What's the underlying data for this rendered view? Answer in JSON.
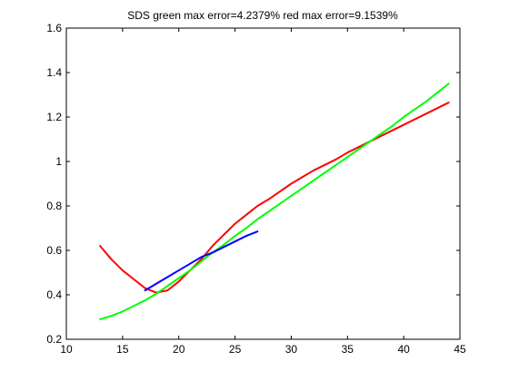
{
  "chart_data": {
    "type": "line",
    "title": "SDS green max error=4.2379% red max error=9.1539%",
    "xlabel": "",
    "ylabel": "",
    "xlim": [
      10,
      45
    ],
    "ylim": [
      0.2,
      1.6
    ],
    "x_ticks": [
      10,
      15,
      20,
      25,
      30,
      35,
      40,
      45
    ],
    "y_ticks": [
      0.2,
      0.4,
      0.6,
      0.8,
      1,
      1.2,
      1.4,
      1.6
    ],
    "x_tick_labels": [
      "10",
      "15",
      "20",
      "25",
      "30",
      "35",
      "40",
      "45"
    ],
    "y_tick_labels": [
      "0.2",
      "0.4",
      "0.6",
      "0.8",
      "1",
      "1.2",
      "1.4",
      "1.6"
    ],
    "grid": false,
    "legend": "none",
    "series": [
      {
        "color": "#ff0000",
        "x": [
          13,
          14,
          15,
          16,
          17,
          18,
          19,
          20,
          21,
          22,
          23,
          24,
          25,
          26,
          27,
          28,
          29,
          30,
          31,
          32,
          33,
          34,
          35,
          36,
          37,
          38,
          39,
          40,
          41,
          42,
          43,
          44
        ],
        "y": [
          0.62,
          0.56,
          0.51,
          0.47,
          0.43,
          0.41,
          0.42,
          0.46,
          0.51,
          0.56,
          0.62,
          0.67,
          0.72,
          0.76,
          0.8,
          0.83,
          0.865,
          0.9,
          0.93,
          0.96,
          0.985,
          1.01,
          1.04,
          1.065,
          1.09,
          1.115,
          1.14,
          1.165,
          1.19,
          1.215,
          1.24,
          1.265
        ]
      },
      {
        "color": "#00ff00",
        "x": [
          13,
          14,
          15,
          16,
          17,
          18,
          19,
          20,
          21,
          22,
          23,
          24,
          25,
          26,
          27,
          28,
          29,
          30,
          31,
          32,
          33,
          34,
          35,
          36,
          37,
          38,
          39,
          40,
          41,
          42,
          43,
          44
        ],
        "y": [
          0.29,
          0.305,
          0.325,
          0.35,
          0.375,
          0.405,
          0.44,
          0.475,
          0.51,
          0.55,
          0.59,
          0.625,
          0.665,
          0.7,
          0.74,
          0.775,
          0.81,
          0.845,
          0.88,
          0.915,
          0.95,
          0.985,
          1.02,
          1.055,
          1.09,
          1.125,
          1.16,
          1.2,
          1.235,
          1.27,
          1.31,
          1.35
        ]
      },
      {
        "color": "#0000ff",
        "x": [
          17,
          18,
          19,
          20,
          21,
          22,
          23,
          24,
          25,
          26,
          27
        ],
        "y": [
          0.42,
          0.45,
          0.48,
          0.51,
          0.54,
          0.57,
          0.59,
          0.615,
          0.64,
          0.665,
          0.685
        ]
      }
    ]
  }
}
